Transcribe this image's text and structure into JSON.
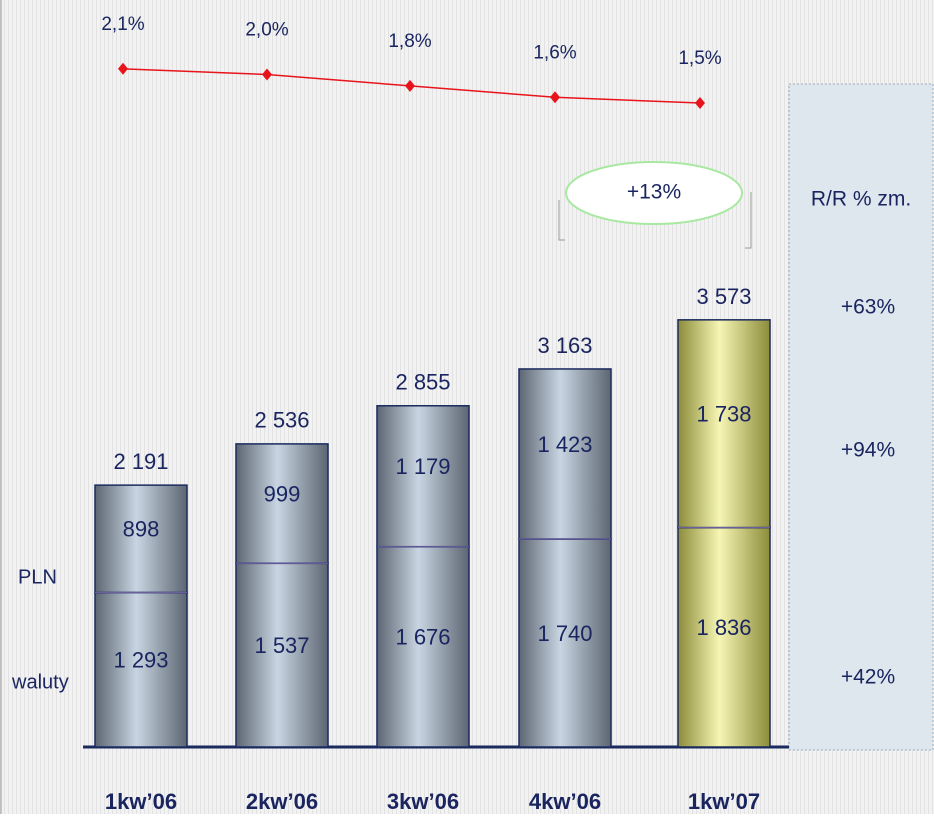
{
  "chart_data": {
    "type": "bar",
    "categories": [
      "1kw’06",
      "2kw’06",
      "3kw’06",
      "4kw’06",
      "1kw’07"
    ],
    "ylim": [
      0,
      6250
    ],
    "series": [
      {
        "name": "waluty",
        "color": "#c9d5e2",
        "values": [
          1293,
          1537,
          1676,
          1740,
          1836
        ],
        "value_labels": [
          "1 293",
          "1 537",
          "1 676",
          "1 740",
          "1 836"
        ]
      },
      {
        "name": "PLN",
        "color": "#c9d5e2",
        "values": [
          898,
          999,
          1179,
          1423,
          1738
        ],
        "value_labels": [
          "898",
          "999",
          "1 179",
          "1 423",
          "1 738"
        ]
      }
    ],
    "highlight_color": "#f6f6b4",
    "totals": {
      "values": [
        2191,
        2536,
        2855,
        3163,
        3573
      ],
      "value_labels": [
        "2 191",
        "2 536",
        "2 855",
        "3 163",
        "3 573"
      ]
    },
    "line": {
      "type": "line",
      "axis": "y2",
      "color": "#e8141c",
      "values": [
        2.1,
        2.0,
        1.8,
        1.6,
        1.5
      ],
      "value_labels": [
        "2,1%",
        "2,0%",
        "1,8%",
        "1,6%",
        "1,5%"
      ]
    },
    "y2lim": [
      0.5,
      2.5
    ],
    "growth_label": "+13%",
    "yoy": {
      "title": "R/R % zm.",
      "labels": [
        "+63%",
        "+94%",
        "+42%"
      ]
    }
  }
}
